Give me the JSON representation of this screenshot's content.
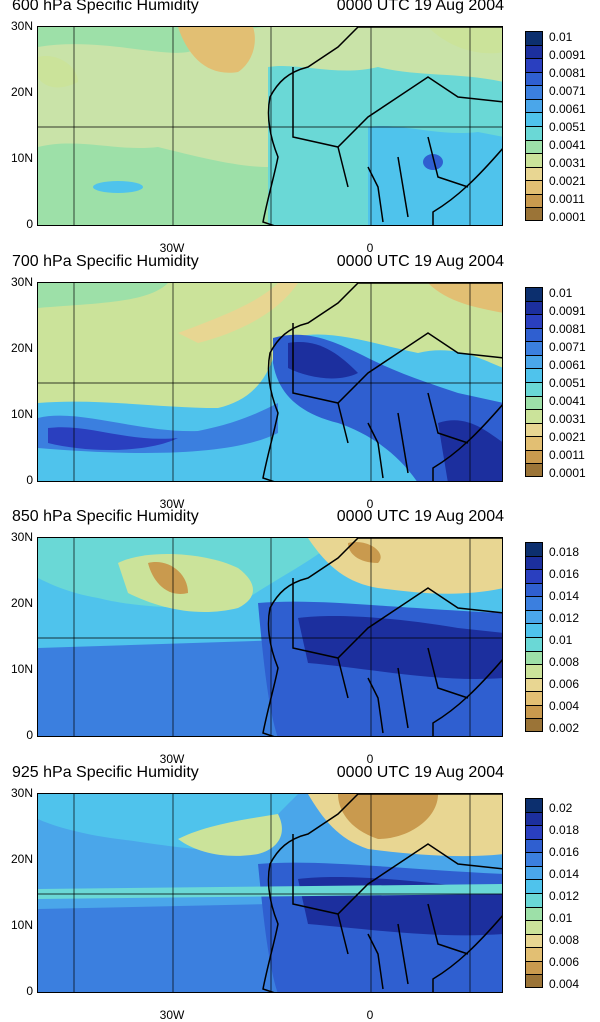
{
  "chart_data": [
    {
      "type": "heatmap",
      "title_left": "600 hPa Specific Humidity",
      "title_right": "0000 UTC 19 Aug 2004",
      "y_ticks": [
        "30N",
        "20N",
        "10N",
        "0"
      ],
      "x_ticks": [
        "30W",
        "0"
      ],
      "colorbar_labels": [
        "0.01",
        "0.0091",
        "0.0081",
        "0.0071",
        "0.0061",
        "0.0051",
        "0.0041",
        "0.0031",
        "0.0021",
        "0.0011",
        "0.0001"
      ],
      "colorbar_colors": [
        "#0c2f6e",
        "#1c2f9e",
        "#2a3fbf",
        "#2f5fd0",
        "#3b7fdf",
        "#4aa6ea",
        "#4fc3ec",
        "#6ad8d6",
        "#9de0a8",
        "#cbe39a",
        "#e8d692",
        "#e2bf73",
        "#c99a4e",
        "#9b7437"
      ]
    },
    {
      "type": "heatmap",
      "title_left": "700 hPa Specific Humidity",
      "title_right": "0000 UTC 19 Aug 2004",
      "y_ticks": [
        "30N",
        "20N",
        "10N",
        "0"
      ],
      "x_ticks": [
        "30W",
        "0"
      ],
      "colorbar_labels": [
        "0.01",
        "0.0091",
        "0.0081",
        "0.0071",
        "0.0061",
        "0.0051",
        "0.0041",
        "0.0031",
        "0.0021",
        "0.0011",
        "0.0001"
      ],
      "colorbar_colors": [
        "#0c2f6e",
        "#1c2f9e",
        "#2a3fbf",
        "#2f5fd0",
        "#3b7fdf",
        "#4aa6ea",
        "#4fc3ec",
        "#6ad8d6",
        "#9de0a8",
        "#cbe39a",
        "#e8d692",
        "#e2bf73",
        "#c99a4e",
        "#9b7437"
      ]
    },
    {
      "type": "heatmap",
      "title_left": "850 hPa Specific Humidity",
      "title_right": "0000 UTC 19 Aug 2004",
      "y_ticks": [
        "30N",
        "20N",
        "10N",
        "0"
      ],
      "x_ticks": [
        "30W",
        "0"
      ],
      "colorbar_labels": [
        "0.018",
        "0.016",
        "0.014",
        "0.012",
        "0.01",
        "0.008",
        "0.006",
        "0.004",
        "0.002"
      ],
      "colorbar_colors": [
        "#0c2f6e",
        "#1c2f9e",
        "#2a3fbf",
        "#2f5fd0",
        "#3b7fdf",
        "#4aa6ea",
        "#4fc3ec",
        "#6ad8d6",
        "#9de0a8",
        "#cbe39a",
        "#e8d692",
        "#e2bf73",
        "#c99a4e",
        "#9b7437"
      ]
    },
    {
      "type": "heatmap",
      "title_left": "925 hPa Specific Humidity",
      "title_right": "0000 UTC 19 Aug 2004",
      "y_ticks": [
        "30N",
        "20N",
        "10N",
        "0"
      ],
      "x_ticks": [
        "30W",
        "0"
      ],
      "colorbar_labels": [
        "0.02",
        "0.018",
        "0.016",
        "0.014",
        "0.012",
        "0.01",
        "0.008",
        "0.006",
        "0.004"
      ],
      "colorbar_colors": [
        "#0c2f6e",
        "#1c2f9e",
        "#2a3fbf",
        "#2f5fd0",
        "#3b7fdf",
        "#4aa6ea",
        "#4fc3ec",
        "#6ad8d6",
        "#9de0a8",
        "#cbe39a",
        "#e8d692",
        "#e2bf73",
        "#c99a4e",
        "#9b7437"
      ]
    }
  ]
}
